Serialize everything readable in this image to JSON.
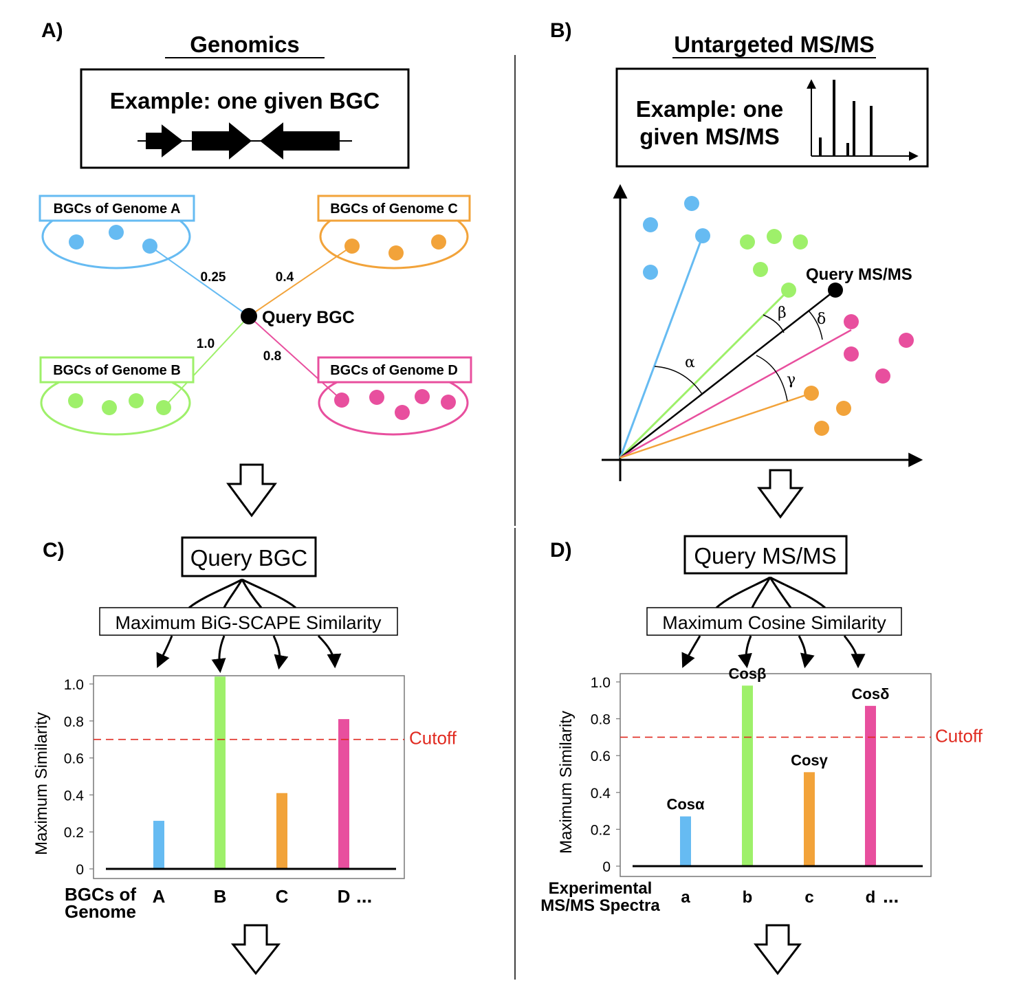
{
  "colors": {
    "blue": "#66bbf2",
    "orange": "#f2a33a",
    "green": "#9ef06a",
    "pink": "#e84f9e",
    "cutoff": "#e02a20",
    "ink": "#000000"
  },
  "panel_a": {
    "letter": "A)",
    "title": "Genomics",
    "example_label": "Example: one given BGC",
    "query_label": "Query BGC",
    "groups": [
      {
        "label": "BGCs of Genome A",
        "color_key": "blue",
        "score": "0.25"
      },
      {
        "label": "BGCs of Genome C",
        "color_key": "orange",
        "score": "0.4"
      },
      {
        "label": "BGCs of Genome B",
        "color_key": "green",
        "score": "1.0"
      },
      {
        "label": "BGCs of Genome D",
        "color_key": "pink",
        "score": "0.8"
      }
    ]
  },
  "panel_b": {
    "letter": "B)",
    "title": "Untargeted MS/MS",
    "example_label_line1": "Example: one",
    "example_label_line2": "given MS/MS",
    "query_label": "Query MS/MS",
    "angles": {
      "alpha": "α",
      "beta": "β",
      "gamma": "γ",
      "delta": "δ"
    }
  },
  "panel_c": {
    "letter": "C)",
    "query_box": "Query BGC",
    "method_box": "Maximum BiG-SCAPE Similarity",
    "xlabel_line1": "BGCs of",
    "xlabel_line2": "Genome",
    "ellipsis": "...",
    "cutoff_label": "Cutoff"
  },
  "panel_d": {
    "letter": "D)",
    "query_box": "Query MS/MS",
    "method_box": "Maximum Cosine Similarity",
    "xlabel_line1": "Experimental",
    "xlabel_line2": "MS/MS Spectra",
    "ellipsis": "...",
    "cutoff_label": "Cutoff",
    "bar_labels": [
      "Cosα",
      "Cosβ",
      "Cosγ",
      "Cosδ"
    ]
  },
  "chart_data": [
    {
      "type": "bar",
      "categories": [
        "A",
        "B",
        "C",
        "D"
      ],
      "values": [
        0.26,
        1.04,
        0.41,
        0.81
      ],
      "bar_colors": [
        "#66bbf2",
        "#9ef06a",
        "#f2a33a",
        "#e84f9e"
      ],
      "cutoff": 0.7,
      "ylabel": "Maximum Similarity",
      "yticks": [
        "0",
        "0.2",
        "0.4",
        "0.6",
        "0.8",
        "1.0"
      ],
      "ylim": [
        0,
        1.05
      ],
      "grid": false
    },
    {
      "type": "bar",
      "categories": [
        "a",
        "b",
        "c",
        "d"
      ],
      "values": [
        0.27,
        0.98,
        0.51,
        0.87
      ],
      "bar_colors": [
        "#66bbf2",
        "#9ef06a",
        "#f2a33a",
        "#e84f9e"
      ],
      "cutoff": 0.7,
      "ylabel": "Maximum Similarity",
      "yticks": [
        "0",
        "0.2",
        "0.4",
        "0.6",
        "0.8",
        "1.0"
      ],
      "ylim": [
        0,
        1.05
      ],
      "grid": false
    }
  ]
}
